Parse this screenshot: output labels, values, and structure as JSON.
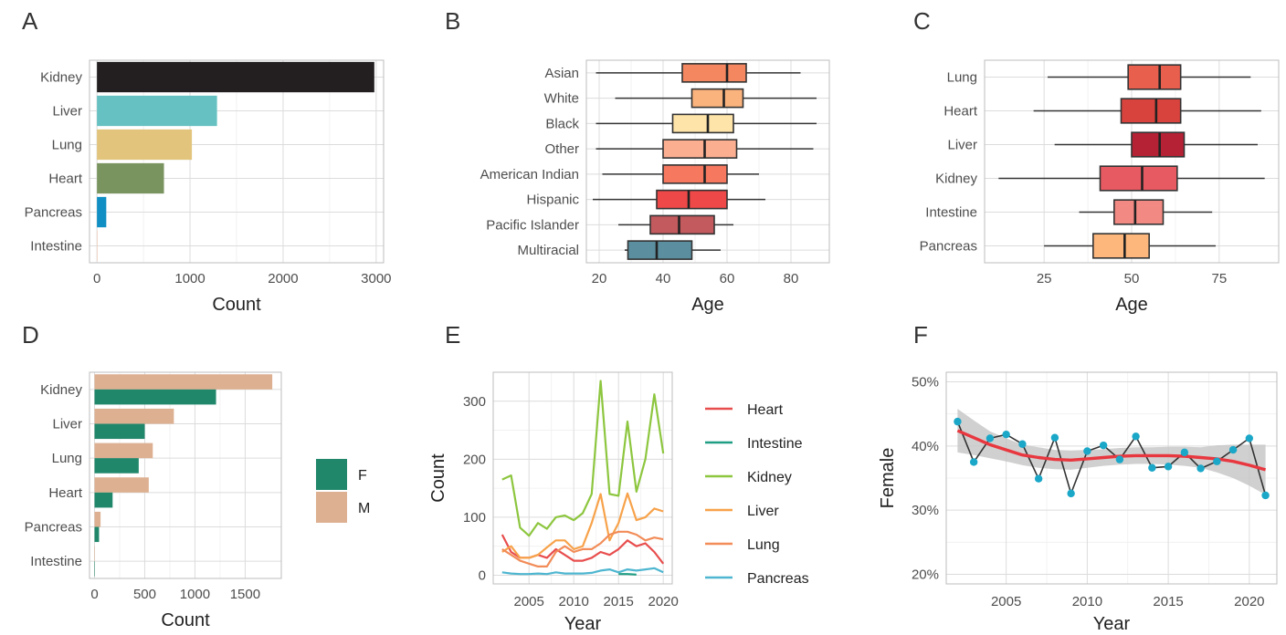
{
  "panels": {
    "A": "A",
    "B": "B",
    "C": "C",
    "D": "D",
    "E": "E",
    "F": "F"
  },
  "chart_data": [
    {
      "panel": "A",
      "type": "bar",
      "orientation": "horizontal",
      "categories": [
        "Kidney",
        "Liver",
        "Lung",
        "Heart",
        "Pancreas",
        "Intestine"
      ],
      "values": [
        2980,
        1290,
        1020,
        720,
        100,
        5
      ],
      "colors": [
        "#231f20",
        "#66c2c2",
        "#e2c47c",
        "#7a9460",
        "#0f8fc3",
        "#f4c3a6"
      ],
      "xlabel": "Count",
      "xticks": [
        "0",
        "1000",
        "2000",
        "3000"
      ],
      "xlim": [
        -80,
        3080
      ],
      "grid": true
    },
    {
      "panel": "B",
      "type": "boxplot",
      "orientation": "horizontal",
      "categories": [
        "Asian",
        "White",
        "Black",
        "Other",
        "American Indian",
        "Hispanic",
        "Pacific Islander",
        "Multiracial"
      ],
      "boxes": [
        {
          "min": 19,
          "q1": 46,
          "median": 60,
          "q3": 66,
          "max": 83
        },
        {
          "min": 25,
          "q1": 49,
          "median": 59,
          "q3": 65,
          "max": 88
        },
        {
          "min": 19,
          "q1": 43,
          "median": 54,
          "q3": 62,
          "max": 88
        },
        {
          "min": 19,
          "q1": 40,
          "median": 53,
          "q3": 63,
          "max": 87
        },
        {
          "min": 21,
          "q1": 40,
          "median": 53,
          "q3": 60,
          "max": 70
        },
        {
          "min": 18,
          "q1": 38,
          "median": 48,
          "q3": 60,
          "max": 72
        },
        {
          "min": 26,
          "q1": 36,
          "median": 45,
          "q3": 56,
          "max": 62
        },
        {
          "min": 28,
          "q1": 29,
          "median": 38,
          "q3": 49,
          "max": 58
        }
      ],
      "colors": [
        "#f4875f",
        "#fbb37e",
        "#fee4a9",
        "#fcae91",
        "#f5785f",
        "#ef4848",
        "#c25a5e",
        "#5b8fa0"
      ],
      "xlabel": "Age",
      "xticks": [
        20,
        40,
        60,
        80
      ],
      "xlim": [
        16,
        92
      ],
      "grid": true
    },
    {
      "panel": "C",
      "type": "boxplot",
      "orientation": "horizontal",
      "categories": [
        "Lung",
        "Heart",
        "Liver",
        "Kidney",
        "Intestine",
        "Pancreas"
      ],
      "boxes": [
        {
          "min": 26,
          "q1": 49,
          "median": 58,
          "q3": 64,
          "max": 84
        },
        {
          "min": 22,
          "q1": 47,
          "median": 57,
          "q3": 64,
          "max": 87
        },
        {
          "min": 28,
          "q1": 50,
          "median": 58,
          "q3": 65,
          "max": 86
        },
        {
          "min": 12,
          "q1": 41,
          "median": 53,
          "q3": 63,
          "max": 88
        },
        {
          "min": 35,
          "q1": 45,
          "median": 51,
          "q3": 59,
          "max": 73
        },
        {
          "min": 25,
          "q1": 39,
          "median": 48,
          "q3": 55,
          "max": 74
        }
      ],
      "colors": [
        "#e95f4e",
        "#d9433d",
        "#b62235",
        "#e85a61",
        "#f28a83",
        "#fdb77d"
      ],
      "xlabel": "Age",
      "xticks": [
        25,
        50,
        75
      ],
      "xlim": [
        8,
        92
      ],
      "grid": true
    },
    {
      "panel": "D",
      "type": "bar",
      "orientation": "horizontal-grouped",
      "categories": [
        "Kidney",
        "Liver",
        "Lung",
        "Heart",
        "Pancreas",
        "Intestine"
      ],
      "series": [
        {
          "name": "F",
          "color": "#21876b",
          "values": [
            1210,
            500,
            440,
            180,
            45,
            2
          ]
        },
        {
          "name": "M",
          "color": "#ddb091",
          "values": [
            1770,
            790,
            580,
            540,
            60,
            3
          ]
        }
      ],
      "xlabel": "Count",
      "xticks": [
        "0",
        "500",
        "1000",
        "1500"
      ],
      "xlim": [
        -50,
        1860
      ],
      "grid": true
    },
    {
      "panel": "E",
      "type": "line",
      "x": [
        2002,
        2003,
        2004,
        2005,
        2006,
        2007,
        2008,
        2009,
        2010,
        2011,
        2012,
        2013,
        2014,
        2015,
        2016,
        2017,
        2018,
        2019,
        2020,
        2021
      ],
      "series": [
        {
          "name": "Heart",
          "color": "#e84d4d",
          "values": [
            70,
            40,
            30,
            30,
            35,
            30,
            45,
            35,
            25,
            25,
            30,
            40,
            35,
            45,
            60,
            50,
            55,
            40,
            20,
            null
          ]
        },
        {
          "name": "Intestine",
          "color": "#1f9e84",
          "values": [
            null,
            null,
            null,
            null,
            null,
            null,
            null,
            null,
            null,
            null,
            null,
            null,
            null,
            2,
            2,
            1,
            null,
            null,
            null,
            null
          ]
        },
        {
          "name": "Kidney",
          "color": "#8dc63f",
          "values": [
            165,
            172,
            82,
            68,
            90,
            80,
            100,
            103,
            95,
            107,
            140,
            335,
            140,
            137,
            265,
            144,
            200,
            312,
            210,
            null
          ]
        },
        {
          "name": "Liver",
          "color": "#f7a24a",
          "values": [
            40,
            50,
            30,
            30,
            35,
            48,
            60,
            60,
            45,
            50,
            90,
            140,
            60,
            90,
            141,
            95,
            100,
            115,
            110,
            null
          ]
        },
        {
          "name": "Lung",
          "color": "#f28c58",
          "values": [
            45,
            35,
            25,
            20,
            15,
            15,
            40,
            50,
            40,
            45,
            45,
            55,
            70,
            75,
            75,
            70,
            60,
            65,
            62,
            null
          ]
        },
        {
          "name": "Pancreas",
          "color": "#4eb6d0",
          "values": [
            5,
            3,
            2,
            2,
            3,
            2,
            5,
            3,
            3,
            3,
            4,
            8,
            10,
            5,
            10,
            8,
            10,
            12,
            5,
            null
          ]
        }
      ],
      "xlabel": "Year",
      "ylabel": "Count",
      "xticks": [
        2005,
        2010,
        2015,
        2020
      ],
      "yticks": [
        0,
        100,
        200,
        300
      ],
      "xlim": [
        2001,
        2021
      ],
      "ylim": [
        -15,
        350
      ],
      "grid": true
    },
    {
      "panel": "F",
      "type": "line",
      "x": [
        2002,
        2003,
        2004,
        2005,
        2006,
        2007,
        2008,
        2009,
        2010,
        2011,
        2012,
        2013,
        2014,
        2015,
        2016,
        2017,
        2018,
        2019,
        2020,
        2021
      ],
      "values": [
        43.8,
        37.5,
        41.2,
        41.8,
        40.3,
        34.9,
        41.3,
        32.6,
        39.2,
        40.1,
        37.9,
        41.5,
        36.6,
        36.8,
        39.0,
        36.5,
        37.6,
        39.4,
        41.2,
        32.3
      ],
      "trend": [
        42.4,
        41.3,
        40.2,
        39.4,
        38.6,
        38.2,
        37.9,
        37.8,
        38.0,
        38.2,
        38.4,
        38.5,
        38.5,
        38.5,
        38.4,
        38.2,
        38.0,
        37.6,
        37.0,
        36.3
      ],
      "ci_lower": [
        39.0,
        38.6,
        38.1,
        37.6,
        37.0,
        36.6,
        36.4,
        36.3,
        36.6,
        36.9,
        37.1,
        37.2,
        37.2,
        37.1,
        36.9,
        36.6,
        35.9,
        35.0,
        33.8,
        32.4
      ],
      "ci_upper": [
        45.8,
        44.0,
        42.3,
        41.2,
        40.2,
        39.8,
        39.4,
        39.3,
        39.4,
        39.5,
        39.7,
        39.8,
        39.8,
        39.9,
        39.9,
        39.8,
        40.1,
        40.2,
        40.2,
        40.2
      ],
      "point_color": "#1aa7c8",
      "line_color": "#333333",
      "trend_color": "#e8373f",
      "xlabel": "Year",
      "ylabel": "Female",
      "xticks": [
        2005,
        2010,
        2015,
        2020
      ],
      "yticks": [
        "20%",
        "30%",
        "40%",
        "50%"
      ],
      "ytick_values": [
        20,
        30,
        40,
        50
      ],
      "xlim": [
        2001.3,
        2021.7
      ],
      "ylim": [
        18.5,
        51.5
      ],
      "grid": true
    }
  ]
}
